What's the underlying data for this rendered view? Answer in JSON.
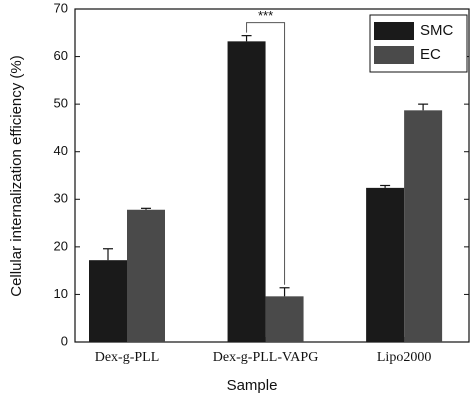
{
  "chart_data": {
    "type": "bar",
    "xlabel": "Sample",
    "ylabel": "Cellular internalization efficiency (%)",
    "categories": [
      "Dex-g-PLL",
      "Dex-g-PLL-VAPG",
      "Lipo2000"
    ],
    "series": [
      {
        "name": "SMC",
        "color": "#1a1a1a",
        "values": [
          17.2,
          63.2,
          32.4
        ],
        "errors": [
          2.4,
          1.2,
          0.5
        ]
      },
      {
        "name": "EC",
        "color": "#4a4a4a",
        "values": [
          27.8,
          9.6,
          48.7
        ],
        "errors": [
          0.3,
          1.8,
          1.3
        ]
      }
    ],
    "significance": "***",
    "ylim": [
      0,
      70
    ],
    "yticks": [
      0,
      10,
      20,
      30,
      40,
      50,
      60,
      70
    ],
    "legend": "top-right"
  }
}
